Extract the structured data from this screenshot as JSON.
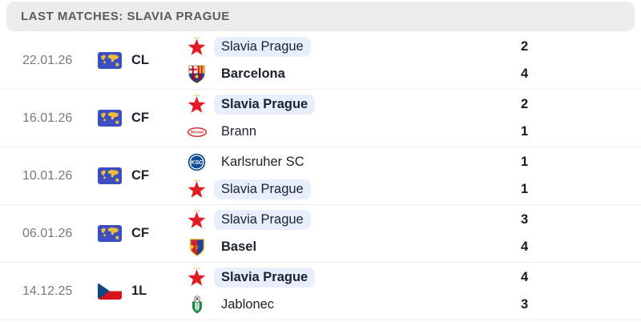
{
  "header": {
    "title": "LAST MATCHES: SLAVIA PRAGUE"
  },
  "colors": {
    "header_bg": "#ececec",
    "header_text": "#565c63",
    "date_text": "#75797f",
    "team_text": "#1b222c",
    "score_text": "#141b24",
    "highlight_pill": "#e8eefb",
    "divider": "#ededed",
    "slavia_red": "#e31b23",
    "world_flag_blue": "#3d4fc0",
    "world_flag_gold": "#ecbc3f"
  },
  "matches": [
    {
      "date": "22.01.26",
      "competition": "CL",
      "competition_icon": "world-flag-icon",
      "home": {
        "name": "Slavia Prague",
        "score": "2",
        "logo_icon": "slavia-prague-logo",
        "highlighted": true,
        "bold": false
      },
      "away": {
        "name": "Barcelona",
        "score": "4",
        "logo_icon": "barcelona-logo",
        "highlighted": false,
        "bold": true
      }
    },
    {
      "date": "16.01.26",
      "competition": "CF",
      "competition_icon": "world-flag-icon",
      "home": {
        "name": "Slavia Prague",
        "score": "2",
        "logo_icon": "slavia-prague-logo",
        "highlighted": true,
        "bold": true
      },
      "away": {
        "name": "Brann",
        "score": "1",
        "logo_icon": "brann-logo",
        "highlighted": false,
        "bold": false
      }
    },
    {
      "date": "10.01.26",
      "competition": "CF",
      "competition_icon": "world-flag-icon",
      "home": {
        "name": "Karlsruher SC",
        "score": "1",
        "logo_icon": "karlsruher-sc-logo",
        "highlighted": false,
        "bold": false
      },
      "away": {
        "name": "Slavia Prague",
        "score": "1",
        "logo_icon": "slavia-prague-logo",
        "highlighted": true,
        "bold": false
      }
    },
    {
      "date": "06.01.26",
      "competition": "CF",
      "competition_icon": "world-flag-icon",
      "home": {
        "name": "Slavia Prague",
        "score": "3",
        "logo_icon": "slavia-prague-logo",
        "highlighted": true,
        "bold": false
      },
      "away": {
        "name": "Basel",
        "score": "4",
        "logo_icon": "basel-logo",
        "highlighted": false,
        "bold": true
      }
    },
    {
      "date": "14.12.25",
      "competition": "1L",
      "competition_icon": "czech-flag-icon",
      "home": {
        "name": "Slavia Prague",
        "score": "4",
        "logo_icon": "slavia-prague-logo",
        "highlighted": true,
        "bold": true
      },
      "away": {
        "name": "Jablonec",
        "score": "3",
        "logo_icon": "jablonec-logo",
        "highlighted": false,
        "bold": false
      }
    }
  ]
}
